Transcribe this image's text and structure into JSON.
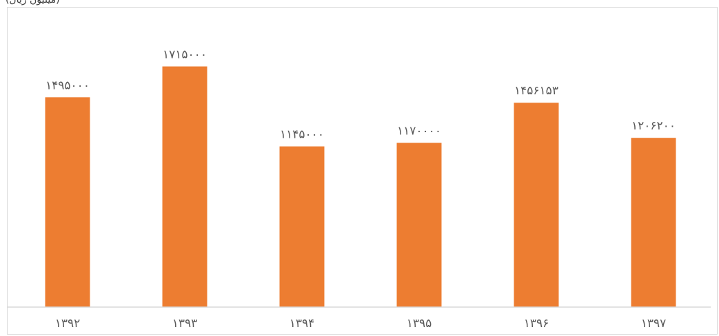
{
  "chart_data": {
    "type": "bar",
    "title": "",
    "unit_label": "(میلیون ریال)",
    "xlabel": "",
    "ylabel": "",
    "categories": [
      "۱۳۹۲",
      "۱۳۹۳",
      "۱۳۹۴",
      "۱۳۹۵",
      "۱۳۹۶",
      "۱۳۹۷"
    ],
    "values": [
      1495000,
      1715000,
      1145000,
      1170000,
      1456153,
      1206200
    ],
    "value_labels": [
      "۱۴۹۵۰۰۰",
      "۱۷۱۵۰۰۰",
      "۱۱۴۵۰۰۰",
      "۱۱۷۰۰۰۰",
      "۱۴۵۶۱۵۳",
      "۱۲۰۶۲۰۰"
    ],
    "ylim": [
      0,
      2000000
    ],
    "grid": false,
    "legend": "none",
    "bar_color": "#ed7d31",
    "axis_color": "#d9d9d9",
    "label_color": "#595959"
  }
}
